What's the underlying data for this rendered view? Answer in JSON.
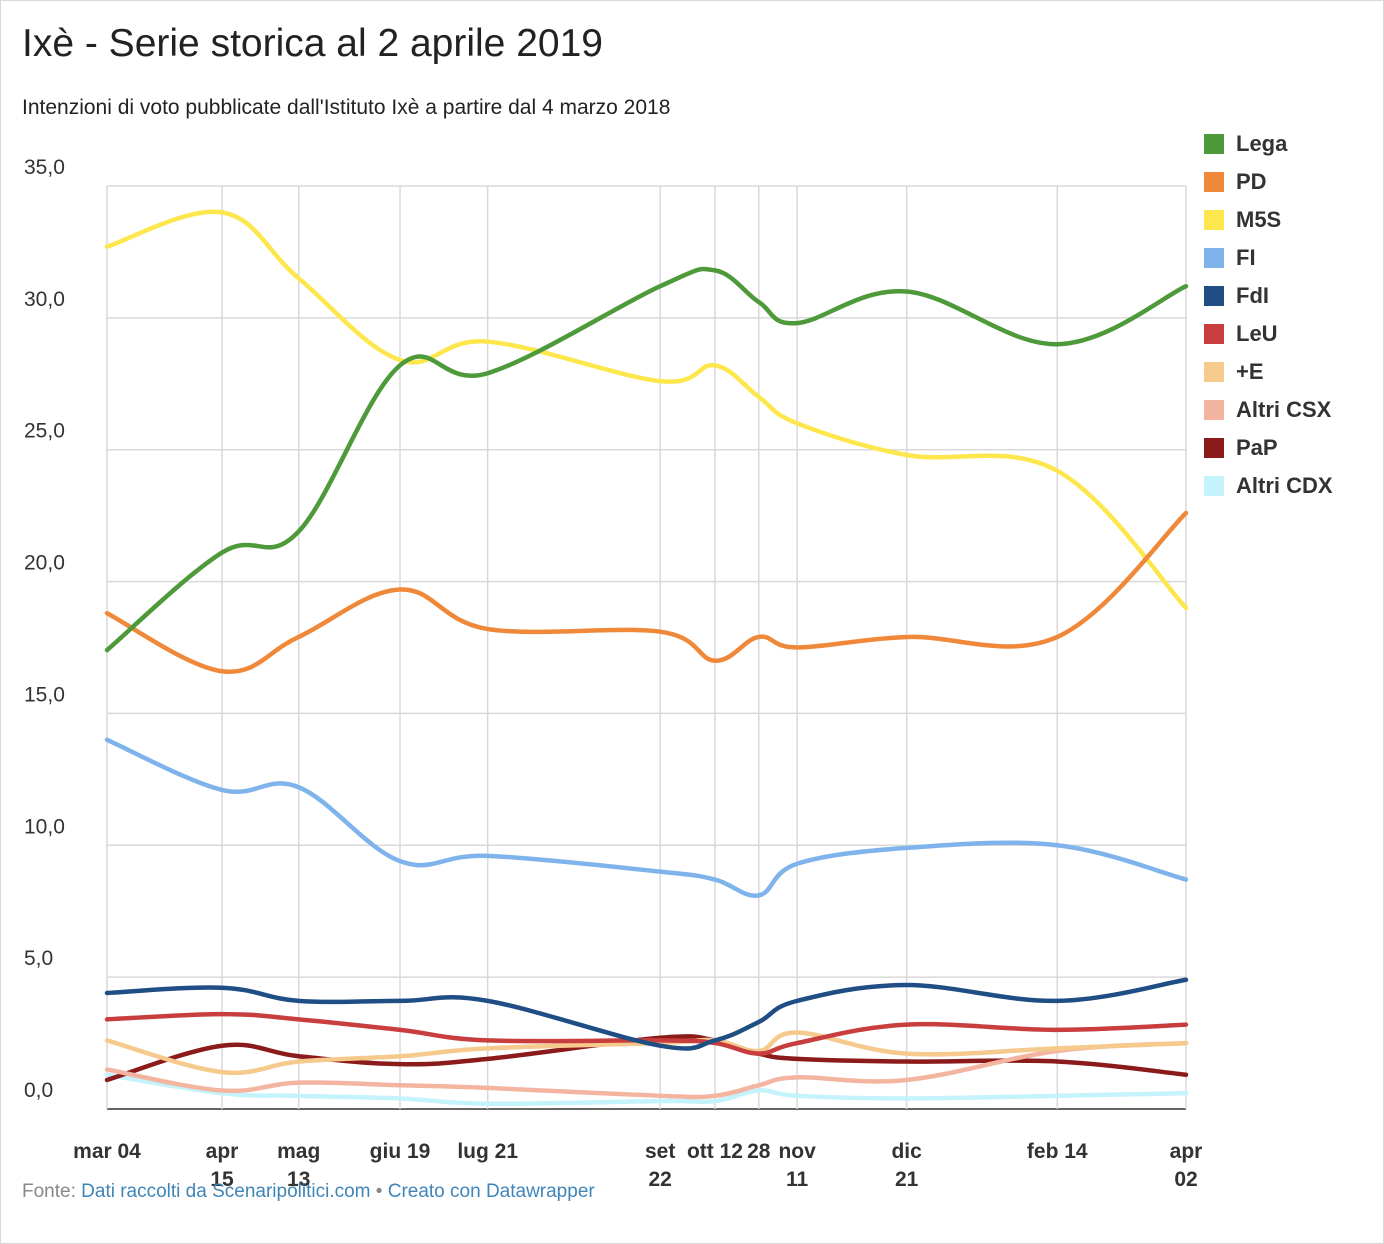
{
  "header": {
    "title": "Ixè - Serie storica al 2 aprile 2019",
    "subtitle": "Intenzioni di voto pubblicate dall'Istituto Ixè a partire dal 4 marzo 2018"
  },
  "footer": {
    "source_label": "Fonte:",
    "source_link": "Dati raccolti da Scenaripolitici.com",
    "separator": "•",
    "credit_link": "Creato con Datawrapper"
  },
  "chart_data": {
    "type": "line",
    "title": "Ixè - Serie storica al 2 aprile 2019",
    "subtitle": "Intenzioni di voto pubblicate dall'Istituto Ixè a partire dal 4 marzo 2018",
    "ylim": [
      0,
      35
    ],
    "y_ticks": [
      "0,0",
      "5,0",
      "10,0",
      "15,0",
      "20,0",
      "25,0",
      "30,0",
      "35,0"
    ],
    "y_tick_values": [
      0,
      5,
      10,
      15,
      20,
      25,
      30,
      35
    ],
    "grid": true,
    "legend_position": "right",
    "x_range_days": [
      0,
      394
    ],
    "x_ticks": [
      {
        "day": 0,
        "lines": [
          "mar 04"
        ]
      },
      {
        "day": 42,
        "lines": [
          "apr",
          "15"
        ]
      },
      {
        "day": 70,
        "lines": [
          "mag",
          "13"
        ]
      },
      {
        "day": 107,
        "lines": [
          "giu 19"
        ]
      },
      {
        "day": 139,
        "lines": [
          "lug 21"
        ]
      },
      {
        "day": 202,
        "lines": [
          "set",
          "22"
        ]
      },
      {
        "day": 222,
        "lines": [
          "ott 12"
        ]
      },
      {
        "day": 238,
        "lines": [
          "28"
        ]
      },
      {
        "day": 252,
        "lines": [
          "nov",
          "11"
        ]
      },
      {
        "day": 292,
        "lines": [
          "dic",
          "21"
        ]
      },
      {
        "day": 347,
        "lines": [
          "feb 14"
        ]
      },
      {
        "day": 394,
        "lines": [
          "apr",
          "02"
        ]
      }
    ],
    "x_points": [
      0,
      42,
      70,
      107,
      139,
      202,
      222,
      238,
      252,
      292,
      347,
      394
    ],
    "series": [
      {
        "name": "Lega",
        "color": "#4e9a3a",
        "values": [
          17.4,
          21.1,
          21.9,
          28.2,
          27.9,
          31.2,
          31.8,
          30.6,
          29.8,
          31.0,
          29.0,
          31.2
        ]
      },
      {
        "name": "PD",
        "color": "#f0883a",
        "values": [
          18.8,
          16.6,
          17.9,
          19.7,
          18.2,
          18.1,
          17.0,
          17.9,
          17.5,
          17.9,
          17.9,
          22.6
        ]
      },
      {
        "name": "M5S",
        "color": "#fde74c",
        "values": [
          32.7,
          34.0,
          31.5,
          28.4,
          29.1,
          27.6,
          28.2,
          27.0,
          26.0,
          24.8,
          24.2,
          19.0
        ]
      },
      {
        "name": "FI",
        "color": "#7fb3ec",
        "values": [
          14.0,
          12.1,
          12.2,
          9.4,
          9.6,
          9.0,
          8.7,
          8.1,
          9.3,
          9.9,
          10.0,
          8.7
        ]
      },
      {
        "name": "FdI",
        "color": "#1f4e85",
        "values": [
          4.4,
          4.6,
          4.1,
          4.1,
          4.1,
          2.4,
          2.6,
          3.3,
          4.1,
          4.7,
          4.1,
          4.9
        ]
      },
      {
        "name": "LeU",
        "color": "#c83e3e",
        "values": [
          3.4,
          3.6,
          3.4,
          3.0,
          2.6,
          2.6,
          2.5,
          2.1,
          2.5,
          3.2,
          3.0,
          3.2
        ]
      },
      {
        "name": "+E",
        "color": "#f6c98c",
        "values": [
          2.6,
          1.4,
          1.8,
          2.0,
          2.3,
          2.5,
          2.6,
          2.2,
          2.9,
          2.1,
          2.3,
          2.5
        ]
      },
      {
        "name": "Altri CSX",
        "color": "#f4b5a0",
        "values": [
          1.5,
          0.7,
          1.0,
          0.9,
          0.8,
          0.5,
          0.5,
          0.9,
          1.2,
          1.1,
          2.2,
          2.5
        ]
      },
      {
        "name": "PaP",
        "color": "#8b1a1a",
        "values": [
          1.1,
          2.4,
          2.0,
          1.7,
          1.9,
          2.7,
          2.6,
          2.1,
          1.9,
          1.8,
          1.8,
          1.3
        ]
      },
      {
        "name": "Altri CDX",
        "color": "#c4f3fb",
        "values": [
          1.3,
          0.6,
          0.5,
          0.4,
          0.2,
          0.3,
          0.3,
          0.7,
          0.5,
          0.4,
          0.5,
          0.6
        ]
      }
    ]
  }
}
